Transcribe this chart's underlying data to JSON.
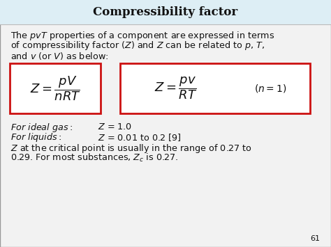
{
  "title": "Compressibility factor",
  "title_bg": "#ddeef5",
  "slide_bg": "#e8e8e8",
  "content_bg": "#f2f2f2",
  "box_color": "#cc1111",
  "text_color": "#111111",
  "page_number": "61",
  "title_fontsize": 12,
  "body_fontsize": 9.2,
  "formula_fontsize": 13,
  "n1_fontsize": 10,
  "page_fontsize": 8
}
